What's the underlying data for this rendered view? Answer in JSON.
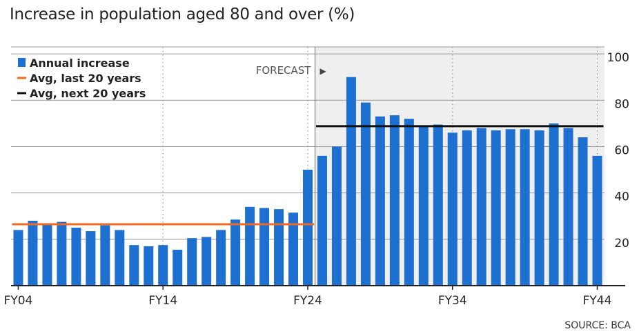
{
  "title": "Increase in population aged 80 and over (%)",
  "source": "SOURCE: BCA",
  "chart_data": {
    "type": "bar",
    "title": "Increase in population aged 80 and over (%)",
    "xlabel": "",
    "ylabel": "",
    "ylim": [
      0,
      103
    ],
    "y_ticks": [
      20,
      40,
      60,
      80,
      100
    ],
    "y_axis_side": "right",
    "x_tick_labels": [
      "FY04",
      "FY14",
      "FY24",
      "FY34",
      "FY44"
    ],
    "categories": [
      "FY04",
      "FY05",
      "FY06",
      "FY07",
      "FY08",
      "FY09",
      "FY10",
      "FY11",
      "FY12",
      "FY13",
      "FY14",
      "FY15",
      "FY16",
      "FY17",
      "FY18",
      "FY19",
      "FY20",
      "FY21",
      "FY22",
      "FY23",
      "FY24",
      "FY25",
      "FY26",
      "FY27",
      "FY28",
      "FY29",
      "FY30",
      "FY31",
      "FY32",
      "FY33",
      "FY34",
      "FY35",
      "FY36",
      "FY37",
      "FY38",
      "FY39",
      "FY40",
      "FY41",
      "FY42",
      "FY43",
      "FY44"
    ],
    "series": [
      {
        "name": "Annual increase",
        "color": "#1d6fd0",
        "values": [
          24,
          28,
          26.5,
          27.5,
          25,
          23.5,
          26,
          24,
          17.5,
          17,
          17.5,
          15.5,
          20.5,
          21,
          24,
          28.5,
          34,
          33.5,
          33,
          31.5,
          50,
          56,
          60,
          90,
          79,
          73,
          73.5,
          72,
          69,
          69.5,
          66,
          67,
          68,
          67,
          67.5,
          67.5,
          67,
          70,
          68,
          64,
          56
        ]
      }
    ],
    "reference_lines": [
      {
        "name": "Avg, last 20 years",
        "color": "#ef6a23",
        "value": 26.5,
        "from": "FY04",
        "to": "FY24"
      },
      {
        "name": "Avg, next 20 years",
        "color": "#111111",
        "value": 68.8,
        "from": "FY25",
        "to": "FY44"
      }
    ],
    "legend": {
      "position": "top-left",
      "entries": [
        {
          "label": "Annual increase",
          "color": "#1d6fd0",
          "marker": "square"
        },
        {
          "label": "Avg, last 20 years",
          "color": "#ef6a23",
          "marker": "line"
        },
        {
          "label": "Avg, next 20 years",
          "color": "#111111",
          "marker": "line"
        }
      ]
    },
    "annotation": {
      "text": "FORECAST",
      "arrow": "▶",
      "starts_at": "FY25"
    },
    "grid": true
  }
}
